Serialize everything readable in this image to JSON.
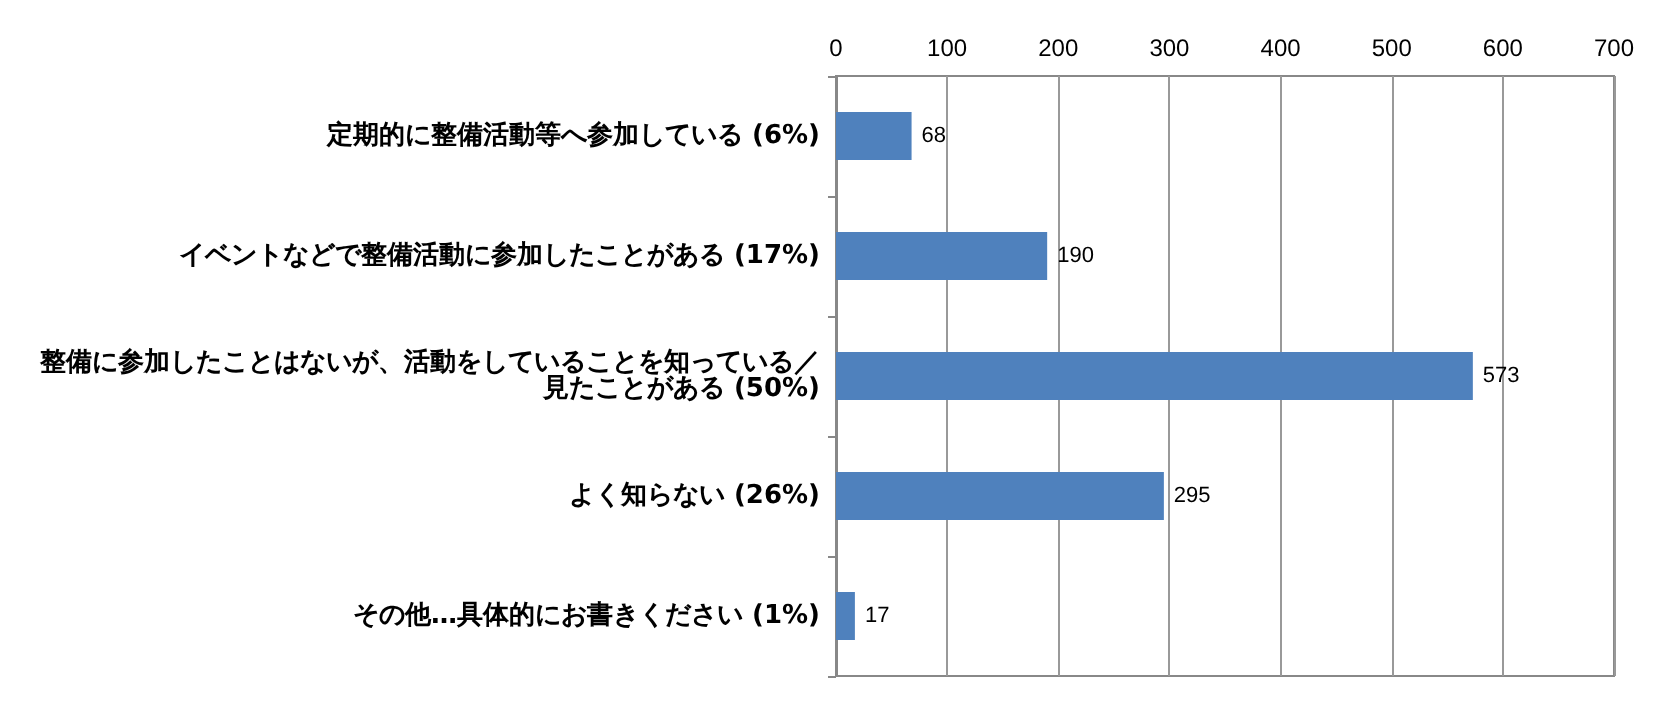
{
  "chart_data": {
    "type": "bar",
    "orientation": "horizontal",
    "categories": [
      "定期的に整備活動等へ参加している (6%)",
      "イベントなどで整備活動に参加したことがある (17%)",
      "整備に参加したことはないが、活動をしていることを知っている／見たことがある (50%)",
      "よく知らない (26%)",
      "その他…具体的にお書きください (1%)"
    ],
    "values": [
      68,
      190,
      573,
      295,
      17
    ],
    "color": "#4f81bd",
    "xlim": [
      0,
      700
    ],
    "xticks": [
      0,
      100,
      200,
      300,
      400,
      500,
      600,
      700
    ],
    "grid": "x",
    "data_labels": true
  }
}
